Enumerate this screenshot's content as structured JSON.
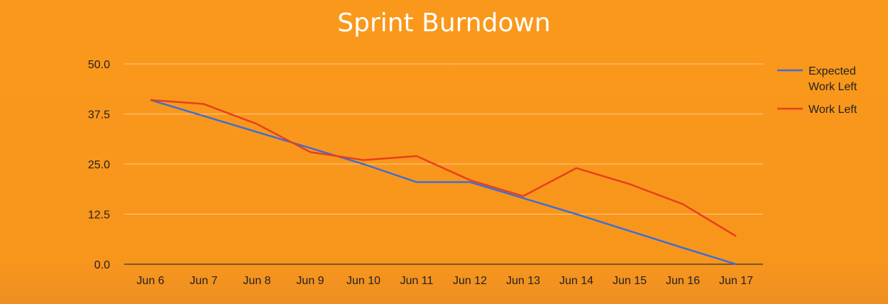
{
  "chart_data": {
    "type": "line",
    "title": "Sprint Burndown",
    "xlabel": "",
    "ylabel": "",
    "ylim": [
      0,
      50
    ],
    "y_ticks": [
      "0.0",
      "12.5",
      "25.0",
      "37.5",
      "50.0"
    ],
    "y_tick_values": [
      0,
      12.5,
      25,
      37.5,
      50
    ],
    "categories": [
      "Jun 6",
      "Jun 7",
      "Jun 8",
      "Jun 9",
      "Jun 10",
      "Jun 11",
      "Jun 12",
      "Jun 13",
      "Jun 14",
      "Jun 15",
      "Jun 16",
      "Jun 17"
    ],
    "grid": true,
    "legend_position": "right",
    "series": [
      {
        "name": "Expected Work Left",
        "name_lines": [
          "Expected",
          "Work Left"
        ],
        "color": "#3f6fd1",
        "values": [
          41,
          37,
          33,
          29,
          25,
          20.5,
          20.5,
          16.5,
          12.5,
          8.3,
          4.1,
          0
        ]
      },
      {
        "name": "Work Left",
        "name_lines": [
          "Work Left"
        ],
        "color": "#e8401c",
        "values": [
          41,
          40,
          35,
          28,
          26,
          27,
          21,
          17,
          24,
          20,
          15,
          7
        ]
      }
    ]
  }
}
